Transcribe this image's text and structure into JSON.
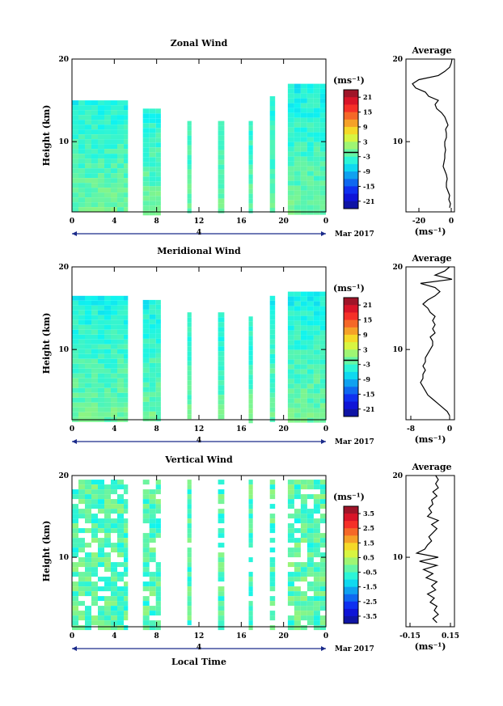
{
  "page": {
    "xlabel": "Local Time",
    "date_label": "Mar 2017",
    "day_label": "4"
  },
  "chart_data": [
    {
      "type": "heatmap",
      "title": "Zonal Wind",
      "ylabel": "Height (km)",
      "x_ticks": [
        "0",
        "4",
        "8",
        "12",
        "16",
        "20",
        "0"
      ],
      "xlim": [
        0,
        24
      ],
      "ylim": [
        1.5,
        20
      ],
      "y_ticks": [
        "20",
        "10"
      ],
      "colorbar": {
        "unit": "(ms⁻¹)",
        "ticks": [
          "21",
          "15",
          "9",
          "3",
          "-3",
          "-9",
          "-15",
          "-21"
        ],
        "range": [
          -24,
          24
        ]
      },
      "data_bands": [
        [
          0.0,
          5.3
        ],
        [
          6.7,
          8.4
        ],
        [
          10.9,
          11.3
        ],
        [
          13.8,
          14.4
        ],
        [
          16.7,
          17.1
        ],
        [
          18.7,
          19.2
        ],
        [
          20.4,
          24.0
        ]
      ],
      "bands_top_km": [
        15.0,
        14.0,
        12.5,
        12.5,
        12.5,
        15.5,
        17.0
      ],
      "average_profile": {
        "title": "Average",
        "xlabel": "(ms⁻¹)",
        "x_ticks": [
          "-20",
          "0"
        ],
        "xlim": [
          -28,
          2
        ],
        "ylim": [
          1.5,
          20
        ],
        "y_ticks": [
          "20",
          "10"
        ],
        "points": [
          [
            -1,
            2
          ],
          [
            -0.5,
            2.5
          ],
          [
            -1.5,
            3
          ],
          [
            -1,
            3.5
          ],
          [
            -2,
            4
          ],
          [
            -3,
            4.5
          ],
          [
            -3,
            5
          ],
          [
            -2.5,
            5.5
          ],
          [
            -3,
            6
          ],
          [
            -4,
            6.5
          ],
          [
            -5,
            7
          ],
          [
            -4.5,
            7.5
          ],
          [
            -4,
            8
          ],
          [
            -4,
            8.5
          ],
          [
            -3.5,
            9
          ],
          [
            -4,
            9.5
          ],
          [
            -4,
            10
          ],
          [
            -3,
            10.5
          ],
          [
            -3,
            11
          ],
          [
            -3.5,
            11.5
          ],
          [
            -2,
            12
          ],
          [
            -3,
            12.5
          ],
          [
            -4,
            13
          ],
          [
            -6,
            13.5
          ],
          [
            -9,
            14
          ],
          [
            -10,
            14.5
          ],
          [
            -8,
            15
          ],
          [
            -14,
            15.5
          ],
          [
            -16,
            16
          ],
          [
            -22,
            16.5
          ],
          [
            -24,
            17
          ],
          [
            -20,
            17.5
          ],
          [
            -8,
            18
          ],
          [
            -4,
            18.5
          ],
          [
            -1,
            19
          ],
          [
            0,
            19.5
          ],
          [
            0.5,
            20
          ]
        ]
      }
    },
    {
      "type": "heatmap",
      "title": "Meridional Wind",
      "ylabel": "Height (km)",
      "x_ticks": [
        "0",
        "4",
        "8",
        "12",
        "16",
        "20",
        "0"
      ],
      "xlim": [
        0,
        24
      ],
      "ylim": [
        1.5,
        20
      ],
      "y_ticks": [
        "20",
        "10"
      ],
      "colorbar": {
        "unit": "(ms⁻¹)",
        "ticks": [
          "21",
          "15",
          "9",
          "3",
          "-3",
          "-9",
          "-15",
          "-21"
        ],
        "range": [
          -24,
          24
        ]
      },
      "data_bands": [
        [
          0.0,
          5.3
        ],
        [
          6.7,
          8.4
        ],
        [
          10.9,
          11.3
        ],
        [
          13.8,
          14.4
        ],
        [
          16.7,
          17.1
        ],
        [
          18.7,
          19.2
        ],
        [
          20.4,
          24.0
        ]
      ],
      "bands_top_km": [
        16.5,
        16.0,
        14.5,
        14.5,
        14.0,
        16.5,
        17.0
      ],
      "average_profile": {
        "title": "Average",
        "xlabel": "(ms⁻¹)",
        "x_ticks": [
          "-8",
          "0"
        ],
        "xlim": [
          -9,
          1
        ],
        "ylim": [
          1.5,
          20
        ],
        "y_ticks": [
          "20",
          "10"
        ],
        "points": [
          [
            0,
            2
          ],
          [
            -0.5,
            2.5
          ],
          [
            -1.5,
            3
          ],
          [
            -2.5,
            3.5
          ],
          [
            -3.5,
            4
          ],
          [
            -4.5,
            4.5
          ],
          [
            -5,
            5
          ],
          [
            -5.5,
            5.5
          ],
          [
            -6,
            6
          ],
          [
            -5.5,
            6.5
          ],
          [
            -5.5,
            7
          ],
          [
            -5,
            7.5
          ],
          [
            -5.5,
            8
          ],
          [
            -5,
            8.5
          ],
          [
            -5,
            9
          ],
          [
            -4.5,
            9.5
          ],
          [
            -4,
            10
          ],
          [
            -3.5,
            10.5
          ],
          [
            -3.5,
            11
          ],
          [
            -4,
            11.5
          ],
          [
            -3,
            12
          ],
          [
            -3.5,
            12.5
          ],
          [
            -3,
            13
          ],
          [
            -3.5,
            13.5
          ],
          [
            -3,
            14
          ],
          [
            -4,
            14.5
          ],
          [
            -4.5,
            15
          ],
          [
            -5.5,
            15.5
          ],
          [
            -4.5,
            16
          ],
          [
            -3,
            16.5
          ],
          [
            -2,
            17
          ],
          [
            -3,
            17.5
          ],
          [
            -6,
            18
          ],
          [
            0.5,
            18.5
          ],
          [
            -3,
            19
          ],
          [
            -1,
            19.5
          ],
          [
            0,
            20
          ]
        ]
      }
    },
    {
      "type": "heatmap",
      "title": "Vertical Wind",
      "ylabel": "Height (km)",
      "x_ticks": [
        "0",
        "4",
        "8",
        "12",
        "16",
        "20",
        "0"
      ],
      "xlim": [
        0,
        24
      ],
      "ylim": [
        1.5,
        20
      ],
      "y_ticks": [
        "20",
        "10"
      ],
      "colorbar": {
        "unit": "(ms⁻¹)",
        "ticks": [
          "3.5",
          "2.5",
          "1.5",
          "0.5",
          "-0.5",
          "-1.5",
          "-2.5",
          "-3.5"
        ],
        "range": [
          -4,
          4
        ]
      },
      "data_bands": [
        [
          0.0,
          5.3
        ],
        [
          6.7,
          8.4
        ],
        [
          10.9,
          11.3
        ],
        [
          13.8,
          14.4
        ],
        [
          16.7,
          17.1
        ],
        [
          18.7,
          19.2
        ],
        [
          20.4,
          24.0
        ]
      ],
      "bands_top_km": [
        19.5,
        19.5,
        19.5,
        19.5,
        19.5,
        19.5,
        19.5
      ],
      "average_profile": {
        "title": "Average",
        "xlabel": "(ms⁻¹)",
        "x_ticks": [
          "-0.15",
          "0.15"
        ],
        "xlim": [
          -0.18,
          0.18
        ],
        "ylim": [
          1.5,
          20
        ],
        "y_ticks": [
          "20",
          "10"
        ],
        "points": [
          [
            0.05,
            2
          ],
          [
            0.02,
            2.5
          ],
          [
            0.06,
            3
          ],
          [
            0.03,
            3.5
          ],
          [
            0.05,
            4
          ],
          [
            0,
            4.5
          ],
          [
            0.03,
            5
          ],
          [
            -0.02,
            5.5
          ],
          [
            0.04,
            6
          ],
          [
            0.01,
            6.5
          ],
          [
            0.05,
            7
          ],
          [
            -0.03,
            7.5
          ],
          [
            0.02,
            8
          ],
          [
            -0.05,
            8.5
          ],
          [
            0.05,
            9
          ],
          [
            -0.08,
            9.5
          ],
          [
            0.06,
            10
          ],
          [
            -0.1,
            10.5
          ],
          [
            -0.04,
            11
          ],
          [
            -0.02,
            11.5
          ],
          [
            0.01,
            12
          ],
          [
            -0.01,
            12.5
          ],
          [
            0.02,
            13
          ],
          [
            0.05,
            13.5
          ],
          [
            0.01,
            14
          ],
          [
            0.06,
            14.5
          ],
          [
            -0.02,
            15
          ],
          [
            0.01,
            15.5
          ],
          [
            -0.01,
            16
          ],
          [
            0.02,
            16.5
          ],
          [
            0.01,
            17
          ],
          [
            0.05,
            17.5
          ],
          [
            0.02,
            18
          ],
          [
            0.06,
            18.5
          ],
          [
            0.04,
            19
          ],
          [
            0.06,
            19.5
          ],
          [
            0.04,
            20
          ]
        ]
      }
    }
  ]
}
